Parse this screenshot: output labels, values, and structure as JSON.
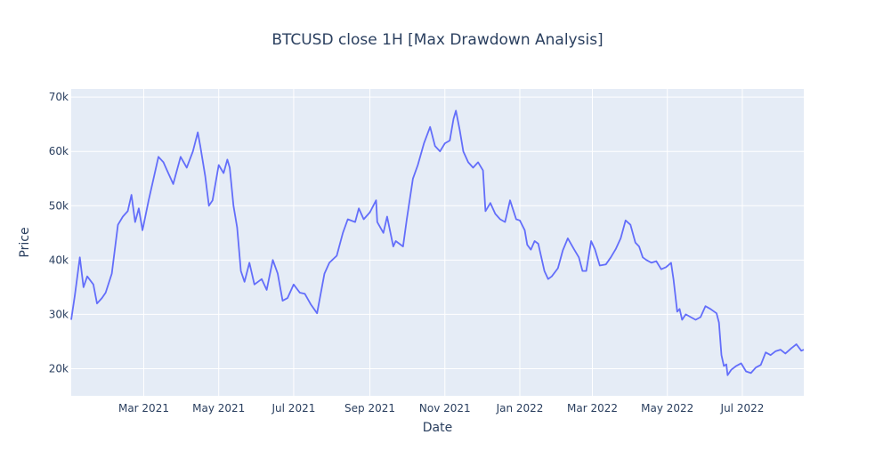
{
  "chart_data": {
    "type": "line",
    "title": "BTCUSD close 1H [Max Drawdown Analysis]",
    "xlabel": "Date",
    "ylabel": "Price",
    "xlim": [
      "2021-01-01",
      "2022-08-20"
    ],
    "ylim": [
      15000,
      71500
    ],
    "grid": true,
    "legend": "none",
    "colors": {
      "series": "#636efa",
      "plot_bg": "#e5ecf6",
      "grid": "#ffffff",
      "text": "#2a3f5f"
    },
    "x_ticks": [
      {
        "date": "2021-03-01",
        "label": "Mar 2021"
      },
      {
        "date": "2021-05-01",
        "label": "May 2021"
      },
      {
        "date": "2021-07-01",
        "label": "Jul 2021"
      },
      {
        "date": "2021-09-01",
        "label": "Sep 2021"
      },
      {
        "date": "2021-11-01",
        "label": "Nov 2021"
      },
      {
        "date": "2022-01-01",
        "label": "Jan 2022"
      },
      {
        "date": "2022-03-01",
        "label": "Mar 2022"
      },
      {
        "date": "2022-05-01",
        "label": "May 2022"
      },
      {
        "date": "2022-07-01",
        "label": "Jul 2022"
      }
    ],
    "y_ticks": [
      {
        "value": 20000,
        "label": "20k"
      },
      {
        "value": 30000,
        "label": "30k"
      },
      {
        "value": 40000,
        "label": "40k"
      },
      {
        "value": 50000,
        "label": "50k"
      },
      {
        "value": 60000,
        "label": "60k"
      },
      {
        "value": 70000,
        "label": "70k"
      }
    ],
    "series": [
      {
        "x": [
          "2021-01-01",
          "2021-01-04",
          "2021-01-08",
          "2021-01-11",
          "2021-01-14",
          "2021-01-19",
          "2021-01-22",
          "2021-01-26",
          "2021-01-29",
          "2021-02-03",
          "2021-02-08",
          "2021-02-12",
          "2021-02-16",
          "2021-02-19",
          "2021-02-22",
          "2021-02-25",
          "2021-02-28",
          "2021-03-05",
          "2021-03-10",
          "2021-03-13",
          "2021-03-17",
          "2021-03-20",
          "2021-03-25",
          "2021-03-31",
          "2021-04-05",
          "2021-04-10",
          "2021-04-14",
          "2021-04-16",
          "2021-04-20",
          "2021-04-23",
          "2021-04-26",
          "2021-05-01",
          "2021-05-05",
          "2021-05-08",
          "2021-05-10",
          "2021-05-13",
          "2021-05-16",
          "2021-05-19",
          "2021-05-22",
          "2021-05-26",
          "2021-05-30",
          "2021-06-05",
          "2021-06-09",
          "2021-06-14",
          "2021-06-18",
          "2021-06-22",
          "2021-06-26",
          "2021-07-01",
          "2021-07-06",
          "2021-07-10",
          "2021-07-15",
          "2021-07-20",
          "2021-07-26",
          "2021-07-30",
          "2021-08-05",
          "2021-08-10",
          "2021-08-14",
          "2021-08-20",
          "2021-08-23",
          "2021-08-27",
          "2021-09-01",
          "2021-09-06",
          "2021-09-07",
          "2021-09-12",
          "2021-09-15",
          "2021-09-20",
          "2021-09-22",
          "2021-09-28",
          "2021-10-01",
          "2021-10-06",
          "2021-10-10",
          "2021-10-15",
          "2021-10-20",
          "2021-10-24",
          "2021-10-28",
          "2021-11-01",
          "2021-11-05",
          "2021-11-08",
          "2021-11-10",
          "2021-11-13",
          "2021-11-16",
          "2021-11-20",
          "2021-11-24",
          "2021-11-28",
          "2021-12-02",
          "2021-12-04",
          "2021-12-08",
          "2021-12-12",
          "2021-12-16",
          "2021-12-20",
          "2021-12-24",
          "2021-12-29",
          "2022-01-01",
          "2022-01-05",
          "2022-01-07",
          "2022-01-10",
          "2022-01-13",
          "2022-01-16",
          "2022-01-21",
          "2022-01-24",
          "2022-01-27",
          "2022-02-01",
          "2022-02-05",
          "2022-02-09",
          "2022-02-14",
          "2022-02-18",
          "2022-02-21",
          "2022-02-24",
          "2022-02-28",
          "2022-03-03",
          "2022-03-07",
          "2022-03-12",
          "2022-03-16",
          "2022-03-20",
          "2022-03-24",
          "2022-03-28",
          "2022-04-01",
          "2022-04-05",
          "2022-04-08",
          "2022-04-11",
          "2022-04-14",
          "2022-04-18",
          "2022-04-22",
          "2022-04-26",
          "2022-04-30",
          "2022-05-04",
          "2022-05-06",
          "2022-05-09",
          "2022-05-11",
          "2022-05-13",
          "2022-05-16",
          "2022-05-20",
          "2022-05-24",
          "2022-05-28",
          "2022-06-01",
          "2022-06-05",
          "2022-06-10",
          "2022-06-12",
          "2022-06-14",
          "2022-06-16",
          "2022-06-18",
          "2022-06-19",
          "2022-06-22",
          "2022-06-26",
          "2022-06-30",
          "2022-07-04",
          "2022-07-08",
          "2022-07-12",
          "2022-07-16",
          "2022-07-20",
          "2022-07-24",
          "2022-07-28",
          "2022-08-01",
          "2022-08-05",
          "2022-08-10",
          "2022-08-14",
          "2022-08-18",
          "2022-08-20"
        ],
        "y": [
          29000,
          33500,
          40500,
          35000,
          37000,
          35500,
          32000,
          33000,
          34000,
          37500,
          46500,
          48000,
          49000,
          52000,
          47000,
          49500,
          45500,
          51000,
          56000,
          59000,
          58000,
          56500,
          54000,
          59000,
          57000,
          60000,
          63500,
          61000,
          55500,
          50000,
          51000,
          57500,
          56000,
          58500,
          57000,
          50000,
          46000,
          38000,
          36000,
          39500,
          35500,
          36500,
          34500,
          40000,
          37500,
          32500,
          33000,
          35500,
          34000,
          33800,
          31800,
          30200,
          37500,
          39500,
          40800,
          45000,
          47500,
          47000,
          49500,
          47500,
          48800,
          51000,
          47000,
          45000,
          48000,
          42500,
          43500,
          42500,
          47500,
          55000,
          57500,
          61500,
          64500,
          61000,
          60000,
          61500,
          62000,
          66000,
          67500,
          64000,
          60000,
          58000,
          57000,
          58000,
          56500,
          49000,
          50500,
          48500,
          47500,
          47000,
          51000,
          47500,
          47300,
          45500,
          42800,
          41900,
          43500,
          43000,
          38000,
          36500,
          37000,
          38500,
          41800,
          44000,
          42000,
          40500,
          38000,
          38000,
          43500,
          42000,
          39000,
          39200,
          40500,
          42000,
          44000,
          47300,
          46500,
          43200,
          42500,
          40500,
          40000,
          39500,
          39800,
          38300,
          38700,
          39500,
          36500,
          30500,
          31000,
          29000,
          30000,
          29500,
          29000,
          29500,
          31500,
          31000,
          30200,
          28500,
          22500,
          20500,
          20800,
          18800,
          19800,
          20500,
          21000,
          19500,
          19200,
          20200,
          20700,
          23000,
          22500,
          23200,
          23500,
          22800,
          23800,
          24500,
          23300,
          23500
        ],
        "mode": "lines"
      }
    ]
  }
}
